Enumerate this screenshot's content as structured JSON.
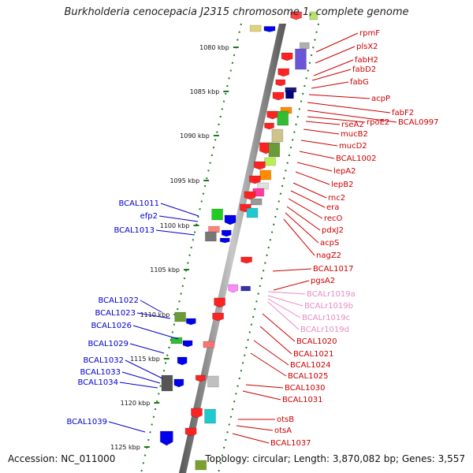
{
  "header": {
    "title": "Burkholderia cenocepacia J2315 chromosome 1, complete genome"
  },
  "footer": {
    "accession": "Accession: NC_011000",
    "topology": "Topology: circular; Length: 3,870,082 bp; Genes: 3,557"
  },
  "colors": {
    "right_label": "#cc0000",
    "left_label": "#0000cc",
    "rna_label": "#e98ac6",
    "axis": "#888888",
    "tick": "#1d7a1d"
  },
  "scale": {
    "ticks": [
      {
        "label": "1080 kbp"
      },
      {
        "label": "1085 kbp"
      },
      {
        "label": "1090 kbp"
      },
      {
        "label": "1095 kbp"
      },
      {
        "label": "1100 kbp"
      },
      {
        "label": "1105 kbp"
      },
      {
        "label": "1110 kbp"
      },
      {
        "label": "1115 kbp"
      },
      {
        "label": "1120 kbp"
      },
      {
        "label": "1125 kbp"
      }
    ]
  },
  "genes_right": [
    {
      "name": "rpmF"
    },
    {
      "name": "plsX2"
    },
    {
      "name": "fabH2"
    },
    {
      "name": "fabD2"
    },
    {
      "name": "fabG"
    },
    {
      "name": "acpP"
    },
    {
      "name": "fabF2"
    },
    {
      "name": "BCAL0997"
    },
    {
      "name": "rpoE2"
    },
    {
      "name": "rseA2"
    },
    {
      "name": "mucB2"
    },
    {
      "name": "mucD2"
    },
    {
      "name": "BCAL1002"
    },
    {
      "name": "lepA2"
    },
    {
      "name": "lepB2"
    },
    {
      "name": "rnc2"
    },
    {
      "name": "era"
    },
    {
      "name": "recO"
    },
    {
      "name": "pdxJ2"
    },
    {
      "name": "acpS"
    },
    {
      "name": "nagZ2"
    },
    {
      "name": "BCAL1017"
    },
    {
      "name": "pgsA2"
    },
    {
      "name": "BCALr1019a"
    },
    {
      "name": "BCALr1019b"
    },
    {
      "name": "BCALr1019c"
    },
    {
      "name": "BCALr1019d"
    },
    {
      "name": "BCAL1020"
    },
    {
      "name": "BCAL1021"
    },
    {
      "name": "BCAL1024"
    },
    {
      "name": "BCAL1025"
    },
    {
      "name": "BCAL1030"
    },
    {
      "name": "BCAL1031"
    },
    {
      "name": "otsB"
    },
    {
      "name": "otsA"
    },
    {
      "name": "BCAL1037"
    }
  ],
  "genes_left": [
    {
      "name": "BCAL1011"
    },
    {
      "name": "efp2"
    },
    {
      "name": "BCAL1013"
    },
    {
      "name": "BCAL1022"
    },
    {
      "name": "BCAL1023"
    },
    {
      "name": "BCAL1026"
    },
    {
      "name": "BCAL1029"
    },
    {
      "name": "BCAL1032"
    },
    {
      "name": "BCAL1033"
    },
    {
      "name": "BCAL1034"
    },
    {
      "name": "BCAL1039"
    }
  ]
}
